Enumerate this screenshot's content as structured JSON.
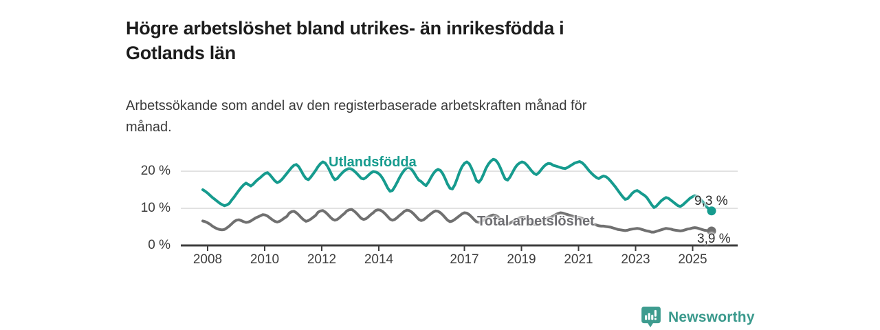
{
  "header": {
    "title": "Högre arbetslöshet bland utrikes- än inrikesfödda i\nGotlands län",
    "subtitle": "Arbetssökande som andel av den registerbaserade arbetskraften månad för\nmånad."
  },
  "footer": {
    "brand": "Newsworthy",
    "brand_icon": "bar-chart-speech-bubble-icon"
  },
  "colors": {
    "series_foreign_born": "#169b8e",
    "series_total": "#707070",
    "axis": "#3d3d3d",
    "grid": "#d8d8d8",
    "logo_teal": "#3e9c8f"
  },
  "chart_data": {
    "type": "line",
    "title": "Högre arbetslöshet bland utrikes- än inrikesfödda i Gotlands län",
    "subtitle": "Arbetssökande som andel av den registerbaserade arbetskraften månad för månad.",
    "x_unit": "month",
    "x_start": "2008-01",
    "x_end": "2025-09",
    "xticks": [
      2008,
      2010,
      2012,
      2014,
      2017,
      2019,
      2021,
      2023,
      2025
    ],
    "yticks": [
      0,
      10,
      20
    ],
    "ytick_labels": [
      "0 %",
      "10 %",
      "20 %"
    ],
    "ylim": [
      0,
      24
    ],
    "grid": "horizontal",
    "legend_position": "inline-labels",
    "series": [
      {
        "name": "Utlandsfödda",
        "color": "#169b8e",
        "end_value_label": "9,3 %",
        "end_value": 9.3,
        "values": [
          15.0,
          14.6,
          14.1,
          13.5,
          12.9,
          12.4,
          11.9,
          11.4,
          11.0,
          10.7,
          10.9,
          11.3,
          12.2,
          13.0,
          13.9,
          14.8,
          15.6,
          16.3,
          16.8,
          16.4,
          16.0,
          16.5,
          17.2,
          17.8,
          18.3,
          18.9,
          19.4,
          19.6,
          19.0,
          18.2,
          17.4,
          16.9,
          17.2,
          17.8,
          18.6,
          19.4,
          20.2,
          21.0,
          21.6,
          21.8,
          21.2,
          20.1,
          18.9,
          18.0,
          17.7,
          18.4,
          19.3,
          20.2,
          21.2,
          22.0,
          22.5,
          22.2,
          21.3,
          20.0,
          18.6,
          17.7,
          18.0,
          18.8,
          19.5,
          20.1,
          20.5,
          20.8,
          20.6,
          20.1,
          19.5,
          18.8,
          18.1,
          17.9,
          18.3,
          18.9,
          19.5,
          19.9,
          19.8,
          19.5,
          18.9,
          18.0,
          16.8,
          15.5,
          14.6,
          14.8,
          15.8,
          17.0,
          18.3,
          19.4,
          20.3,
          20.9,
          21.0,
          20.5,
          19.6,
          18.5,
          17.6,
          17.2,
          16.6,
          16.1,
          17.0,
          18.2,
          19.3,
          20.1,
          20.5,
          20.2,
          19.3,
          18.0,
          16.5,
          15.4,
          15.2,
          16.3,
          18.0,
          19.8,
          21.2,
          22.1,
          22.5,
          22.0,
          20.8,
          19.2,
          17.5,
          17.0,
          17.8,
          19.2,
          20.8,
          21.9,
          22.7,
          23.2,
          23.0,
          22.2,
          20.9,
          19.3,
          17.9,
          17.6,
          18.4,
          19.6,
          20.8,
          21.7,
          22.2,
          22.5,
          22.3,
          21.7,
          20.9,
          20.1,
          19.4,
          19.1,
          19.6,
          20.4,
          21.2,
          21.8,
          22.1,
          22.0,
          21.6,
          21.4,
          21.2,
          21.0,
          20.8,
          20.7,
          21.0,
          21.4,
          21.8,
          22.2,
          22.4,
          22.6,
          22.3,
          21.7,
          20.9,
          20.1,
          19.4,
          18.8,
          18.3,
          18.0,
          18.4,
          18.7,
          18.5,
          18.0,
          17.3,
          16.5,
          15.7,
          14.8,
          13.9,
          13.1,
          12.4,
          12.6,
          13.3,
          14.1,
          14.6,
          14.8,
          14.4,
          13.9,
          13.5,
          12.9,
          12.0,
          11.0,
          10.2,
          10.6,
          11.3,
          12.0,
          12.5,
          12.9,
          12.7,
          12.2,
          11.7,
          11.2,
          10.7,
          10.5,
          10.9,
          11.5,
          12.1,
          12.7,
          13.1,
          13.4,
          13.2,
          12.7,
          12.0,
          11.2,
          10.4,
          9.7,
          9.3
        ]
      },
      {
        "name": "Total arbetslöshet",
        "color": "#707070",
        "end_value_label": "3,9 %",
        "end_value": 3.9,
        "values": [
          6.6,
          6.4,
          6.1,
          5.7,
          5.2,
          4.8,
          4.5,
          4.3,
          4.2,
          4.3,
          4.7,
          5.2,
          5.8,
          6.4,
          6.8,
          6.9,
          6.7,
          6.4,
          6.2,
          6.3,
          6.6,
          7.0,
          7.4,
          7.7,
          8.0,
          8.3,
          8.2,
          7.9,
          7.4,
          6.9,
          6.5,
          6.3,
          6.5,
          6.9,
          7.4,
          7.8,
          8.7,
          9.1,
          9.2,
          8.8,
          8.2,
          7.5,
          6.9,
          6.5,
          6.7,
          7.1,
          7.6,
          8.1,
          8.9,
          9.3,
          9.4,
          9.0,
          8.4,
          7.7,
          7.1,
          6.8,
          7.0,
          7.5,
          8.1,
          8.6,
          9.3,
          9.6,
          9.7,
          9.3,
          8.7,
          8.0,
          7.3,
          7.0,
          7.2,
          7.7,
          8.3,
          8.8,
          9.4,
          9.6,
          9.5,
          9.1,
          8.5,
          7.8,
          7.1,
          6.8,
          7.0,
          7.5,
          8.1,
          8.6,
          9.2,
          9.5,
          9.4,
          9.0,
          8.4,
          7.7,
          7.0,
          6.7,
          6.9,
          7.4,
          8.0,
          8.5,
          9.0,
          9.3,
          9.2,
          8.8,
          8.2,
          7.5,
          6.8,
          6.4,
          6.6,
          7.0,
          7.5,
          8.0,
          8.5,
          8.8,
          8.7,
          8.3,
          7.7,
          7.0,
          6.4,
          6.2,
          6.4,
          6.8,
          7.3,
          7.7,
          8.0,
          8.2,
          8.1,
          7.7,
          7.1,
          6.5,
          6.0,
          5.8,
          6.0,
          6.4,
          6.8,
          7.1,
          7.4,
          7.6,
          7.5,
          7.1,
          6.6,
          6.1,
          5.7,
          5.6,
          5.8,
          6.2,
          6.6,
          7.0,
          7.4,
          7.6,
          7.9,
          8.3,
          8.6,
          8.8,
          8.7,
          8.5,
          8.3,
          8.1,
          7.9,
          7.7,
          7.6,
          7.5,
          7.3,
          7.0,
          6.7,
          6.3,
          6.0,
          5.7,
          5.5,
          5.3,
          5.2,
          5.2,
          5.1,
          5.0,
          4.9,
          4.7,
          4.5,
          4.3,
          4.2,
          4.1,
          4.0,
          4.1,
          4.3,
          4.4,
          4.5,
          4.6,
          4.5,
          4.3,
          4.1,
          3.9,
          3.8,
          3.6,
          3.6,
          3.8,
          4.0,
          4.2,
          4.4,
          4.6,
          4.5,
          4.4,
          4.2,
          4.1,
          4.0,
          3.9,
          4.0,
          4.2,
          4.4,
          4.5,
          4.7,
          4.8,
          4.7,
          4.5,
          4.3,
          4.1,
          4.0,
          3.9,
          3.9
        ]
      }
    ]
  }
}
